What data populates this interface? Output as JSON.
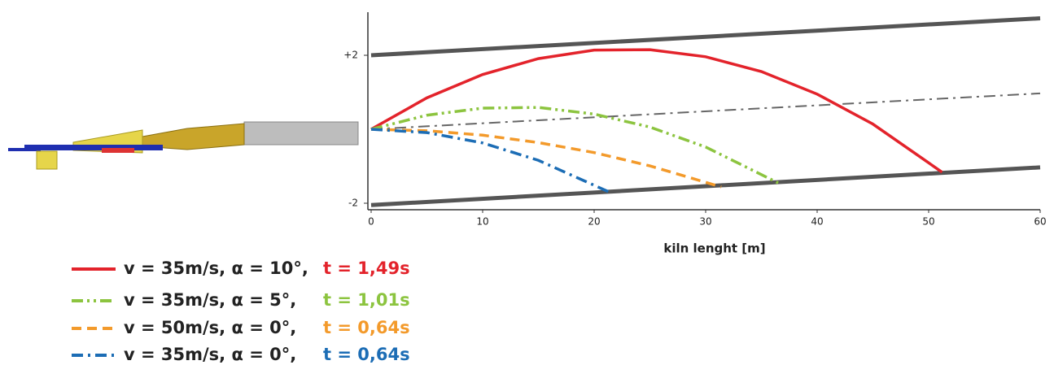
{
  "chart_data": {
    "type": "line",
    "x_label": "kiln lenght [m]",
    "xlim": [
      0,
      60
    ],
    "xticks": [
      0,
      10,
      20,
      30,
      40,
      50,
      60
    ],
    "ylim": [
      -2,
      2
    ],
    "yticks": [
      {
        "value": 2,
        "label": "+2"
      },
      -2
    ],
    "reference_lines": [
      {
        "x": [
          0,
          60
        ],
        "values": [
          2,
          3
        ],
        "color": "#555555",
        "dash": "solid"
      },
      {
        "x": [
          0,
          60
        ],
        "values": [
          -2.05,
          -1.03
        ],
        "color": "#555555",
        "dash": "solid"
      },
      {
        "x": [
          0,
          60
        ],
        "values": [
          0,
          0.97
        ],
        "color": "#666666",
        "dash": "dash-dot"
      }
    ],
    "series": [
      {
        "name": "v = 35m/s, α = 10°,",
        "time_label": "t = 1,49s",
        "color": "#e3232b",
        "dash": "solid",
        "x": [
          0,
          5,
          10,
          15,
          20,
          25,
          30,
          35,
          40,
          45,
          51.2
        ],
        "values": [
          0,
          0.85,
          1.48,
          1.91,
          2.14,
          2.15,
          1.96,
          1.56,
          0.95,
          0.14,
          -1.16
        ]
      },
      {
        "name": "v = 35m/s, α = 5°,",
        "time_label": "t = 1,01s",
        "color": "#8cc43f",
        "dash": "dash-dot-dot",
        "x": [
          0,
          5,
          10,
          15,
          20,
          25,
          30,
          36.5
        ],
        "values": [
          0,
          0.38,
          0.57,
          0.59,
          0.41,
          0.06,
          -0.48,
          -1.45
        ]
      },
      {
        "name": "v = 50m/s, α = 0°,",
        "time_label": "t = 0,64s",
        "color": "#f39a2b",
        "dash": "dashed",
        "x": [
          0,
          5,
          10,
          15,
          20,
          25,
          31.4
        ],
        "values": [
          0,
          -0.04,
          -0.16,
          -0.36,
          -0.63,
          -0.99,
          -1.56
        ]
      },
      {
        "name": "v = 35m/s, α = 0°,",
        "time_label": "t = 0,64s",
        "color": "#1c6db5",
        "dash": "dash-dot",
        "x": [
          0,
          5,
          10,
          15,
          21.3
        ],
        "values": [
          0,
          -0.09,
          -0.37,
          -0.84,
          -1.69
        ]
      }
    ]
  }
}
